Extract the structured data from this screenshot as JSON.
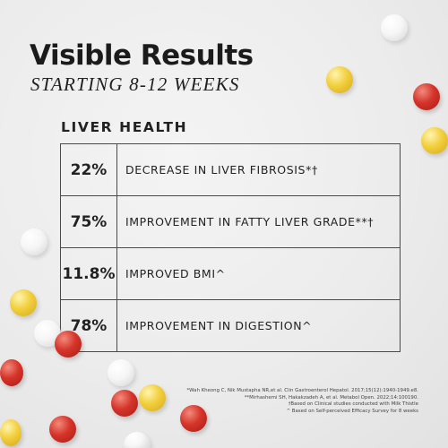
{
  "header": {
    "title": "Visible Results",
    "subtitle": "STARTING 8-12 WEEKS"
  },
  "section_label": "LIVER HEALTH",
  "results": [
    {
      "value": "22%",
      "description": "DECREASE IN LIVER FIBROSIS*†"
    },
    {
      "value": "75%",
      "description": "IMPROVEMENT IN FATTY LIVER GRADE**†"
    },
    {
      "value": "11.8%",
      "description": "IMPROVED BMI^"
    },
    {
      "value": "78%",
      "description": "IMPROVEMENT IN DIGESTION^"
    }
  ],
  "footnotes": [
    "*Wah Kheong C, Nik Mustapha NR,et al. Clin Gastroenterol Hepatol. 2017;15(12):1940-1949.e8.",
    "**Mirhashemi SH, Hakakzadeh A, et al. Metabol Open. 2022;14:100190.",
    "†Based on Clinical studies conducted with Milk Thistle",
    "^ Based on Self-perceived Efficacy Survey for 8 weeks"
  ],
  "colors": {
    "background": "#ececec",
    "text": "#1e1e1e",
    "ball_white": "#f6f6f6",
    "ball_yellow": "#f2cf3d",
    "ball_red": "#d6342a"
  }
}
